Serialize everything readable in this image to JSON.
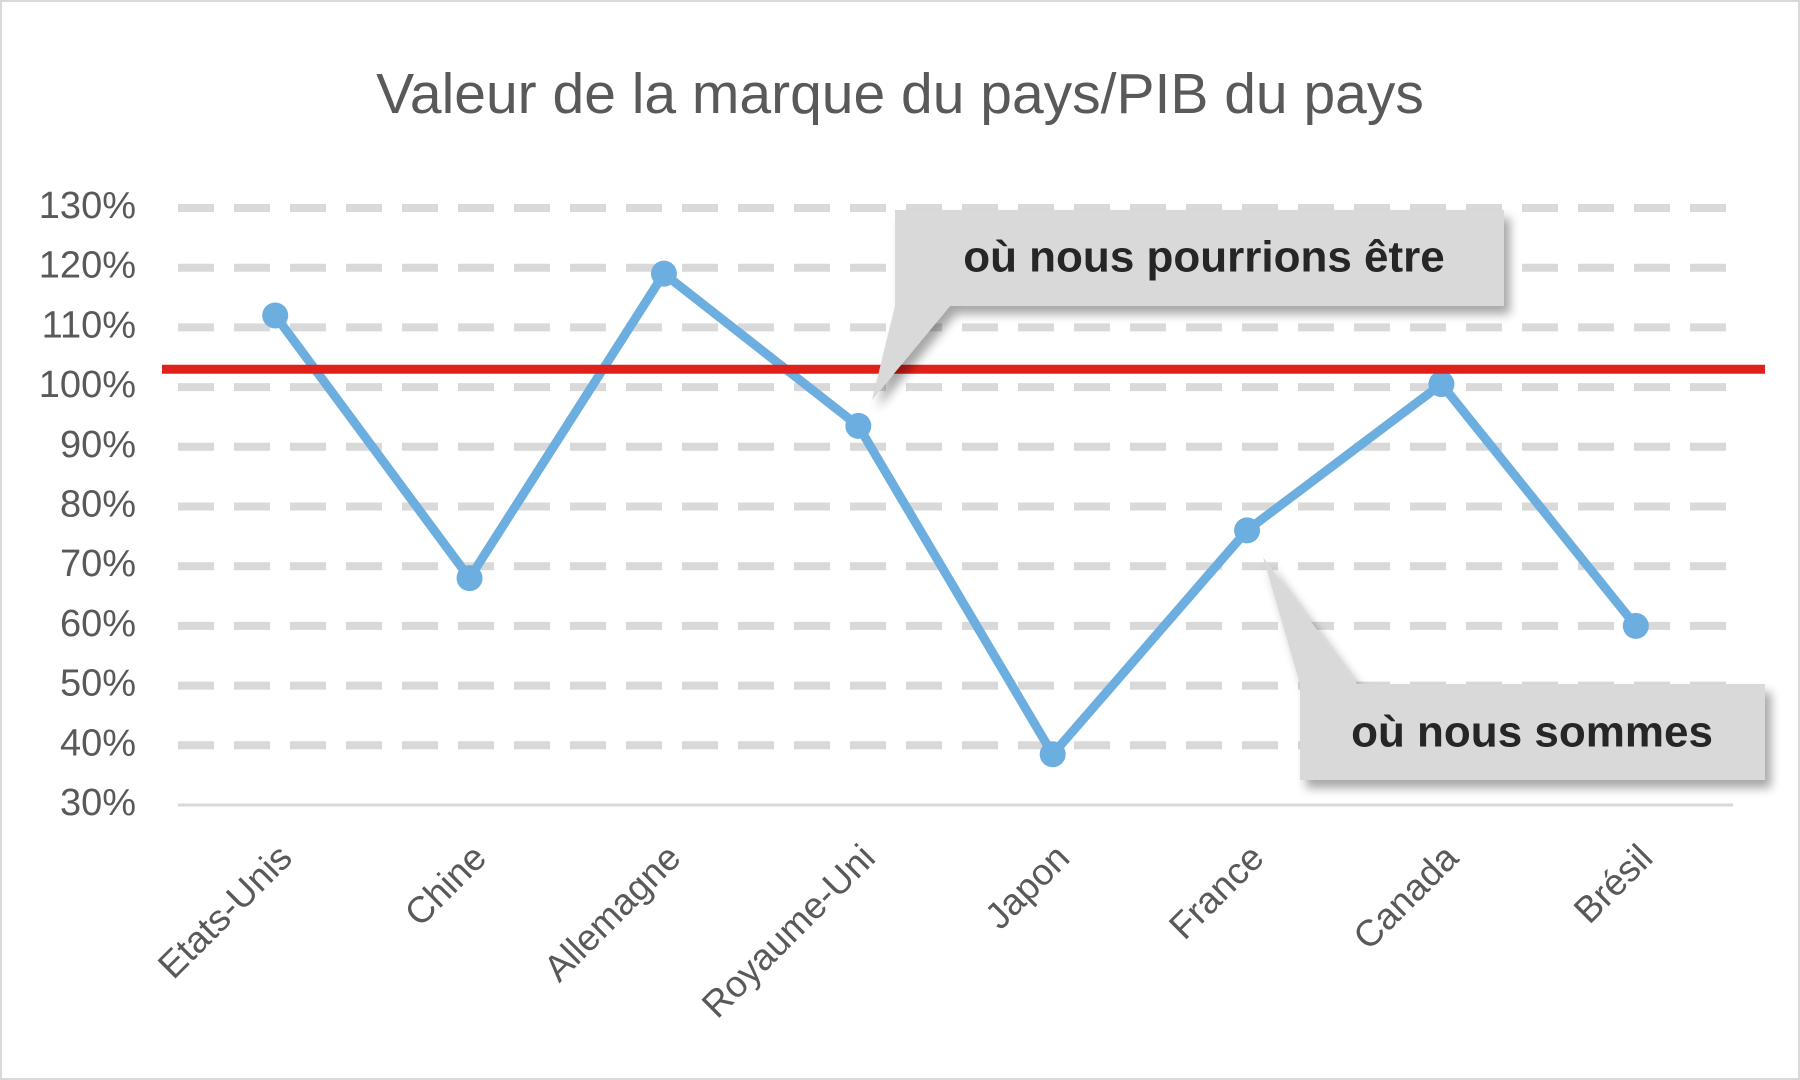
{
  "chart_data": {
    "type": "line",
    "title": "Valeur de la marque du pays/PIB du pays",
    "categories": [
      "Etats-Unis",
      "Chine",
      "Allemagne",
      "Royaume-Uni",
      "Japon",
      "France",
      "Canada",
      "Brésil"
    ],
    "series": [
      {
        "color": "#6caee0",
        "values": [
          112,
          68,
          119,
          93.5,
          38.5,
          76,
          100.5,
          60
        ]
      }
    ],
    "reference_line": {
      "value": 103,
      "color": "#e0201b"
    },
    "ylim": [
      30,
      130
    ],
    "yticks": [
      {
        "value": 30,
        "label": "30%"
      },
      {
        "value": 40,
        "label": "40%"
      },
      {
        "value": 50,
        "label": "50%"
      },
      {
        "value": 60,
        "label": "60%"
      },
      {
        "value": 70,
        "label": "70%"
      },
      {
        "value": 80,
        "label": "80%"
      },
      {
        "value": 90,
        "label": "90%"
      },
      {
        "value": 100,
        "label": "100%"
      },
      {
        "value": 110,
        "label": "110%"
      },
      {
        "value": 120,
        "label": "120%"
      },
      {
        "value": 130,
        "label": "130%"
      }
    ],
    "grid": true,
    "annotations": [
      "où nous pourrions être",
      "où nous sommes"
    ]
  }
}
